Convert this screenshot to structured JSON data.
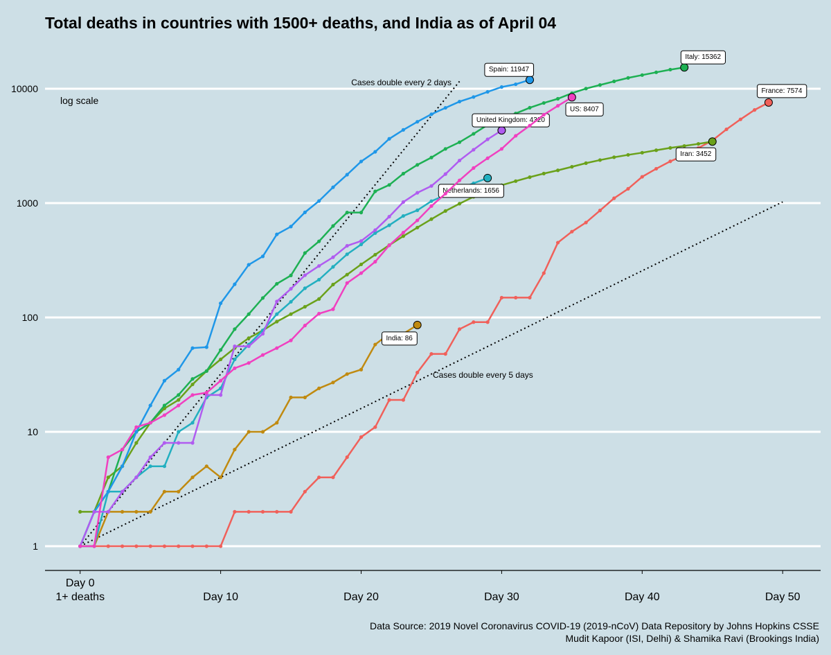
{
  "chart_data": {
    "type": "line",
    "title": "Total deaths in countries with 1500+ deaths, and India as of April 04",
    "log_note": "log scale",
    "source": [
      "Data Source: 2019 Novel Coronavirus COVID-19 (2019-nCoV) Data Repository by Johns Hopkins CSSE",
      "Mudit Kapoor (ISI, Delhi) & Shamika Ravi (Brookings India)"
    ],
    "log_scale": true,
    "grid": true,
    "xlim": [
      -2.5,
      52.7
    ],
    "ylim": [
      0.614,
      25820
    ],
    "xticks": [
      {
        "value": 0,
        "label": "Day 0\n1+ deaths"
      },
      {
        "value": 10,
        "label": "Day 10"
      },
      {
        "value": 20,
        "label": "Day 20"
      },
      {
        "value": 30,
        "label": "Day 30"
      },
      {
        "value": 40,
        "label": "Day 40"
      },
      {
        "value": 50,
        "label": "Day 50"
      }
    ],
    "yticks": [
      1,
      10,
      100,
      1000,
      10000
    ],
    "x": [
      0,
      1,
      2,
      3,
      4,
      5,
      6,
      7,
      8,
      9,
      10,
      11,
      12,
      13,
      14,
      15,
      16,
      17,
      18,
      19,
      20,
      21,
      22,
      23,
      24,
      25,
      26,
      27,
      28,
      29,
      30,
      31,
      32,
      33,
      34,
      35,
      36,
      37,
      38,
      39,
      40,
      41,
      42,
      43,
      44,
      45,
      46,
      47,
      48,
      49
    ],
    "reference_lines": [
      {
        "label": "Cases double every 2 days",
        "doubling_days": 2,
        "x": [
          0,
          27
        ]
      },
      {
        "label": "Cases double every 5 days",
        "doubling_days": 5,
        "x": [
          0,
          50
        ]
      }
    ],
    "series": [
      {
        "name": "France",
        "color": "#f0605a",
        "end_label": "France: 7574",
        "values": [
          1,
          1,
          1,
          1,
          1,
          1,
          1,
          1,
          1,
          1,
          1,
          2,
          2,
          2,
          2,
          2,
          3,
          4,
          4,
          6,
          9,
          11,
          19,
          19,
          33,
          48,
          48,
          79,
          91,
          91,
          149,
          149,
          149,
          244,
          451,
          563,
          676,
          862,
          1102,
          1333,
          1698,
          1997,
          2317,
          2611,
          3030,
          3532,
          4414,
          5398,
          6520,
          7574
        ]
      },
      {
        "name": "India",
        "color": "#c08a10",
        "end_label": "India: 86",
        "values": [
          1,
          1,
          2,
          2,
          2,
          2,
          3,
          3,
          4,
          5,
          4,
          7,
          10,
          10,
          12,
          20,
          20,
          24,
          27,
          32,
          35,
          58,
          72,
          72,
          86,
          null,
          null,
          null,
          null,
          null,
          null,
          null,
          null,
          null,
          null,
          null,
          null,
          null,
          null,
          null,
          null,
          null,
          null,
          null,
          null,
          null,
          null,
          null,
          null,
          null
        ]
      },
      {
        "name": "Iran",
        "color": "#6aa11a",
        "end_label": "Iran: 3452",
        "values": [
          2,
          2,
          4,
          5,
          8,
          12,
          16,
          19,
          26,
          34,
          43,
          54,
          66,
          77,
          92,
          107,
          124,
          145,
          194,
          237,
          291,
          354,
          429,
          514,
          611,
          724,
          853,
          988,
          1135,
          1284,
          1433,
          1556,
          1685,
          1812,
          1934,
          2077,
          2234,
          2378,
          2517,
          2640,
          2757,
          2898,
          3036,
          3160,
          3294,
          3452,
          null,
          null,
          null,
          null
        ]
      },
      {
        "name": "Italy",
        "color": "#1db053",
        "end_label": "Italy: 15362",
        "values": [
          1,
          2,
          3,
          7,
          10,
          12,
          17,
          21,
          29,
          34,
          52,
          79,
          107,
          148,
          197,
          233,
          366,
          463,
          631,
          827,
          827,
          1266,
          1441,
          1809,
          2158,
          2503,
          2978,
          3405,
          4032,
          4825,
          5476,
          6077,
          6820,
          7503,
          8165,
          9134,
          10023,
          10779,
          11591,
          12428,
          13155,
          13915,
          14681,
          15362,
          null,
          null,
          null,
          null,
          null,
          null
        ]
      },
      {
        "name": "Netherlands",
        "color": "#22afc0",
        "end_label": "Netherlands: 1656",
        "values": [
          1,
          1,
          3,
          3,
          4,
          5,
          5,
          10,
          12,
          20,
          24,
          43,
          58,
          77,
          107,
          137,
          180,
          214,
          277,
          357,
          435,
          547,
          640,
          772,
          865,
          1040,
          1175,
          1341,
          1490,
          1656,
          null,
          null,
          null,
          null,
          null,
          null,
          null,
          null,
          null,
          null,
          null,
          null,
          null,
          null,
          null,
          null,
          null,
          null,
          null,
          null
        ]
      },
      {
        "name": "Spain",
        "color": "#1f97e8",
        "end_label": "Spain: 11947",
        "values": [
          1,
          2,
          3,
          5,
          10,
          17,
          28,
          35,
          54,
          55,
          133,
          195,
          289,
          342,
          533,
          623,
          830,
          1043,
          1375,
          1772,
          2311,
          2808,
          3647,
          4365,
          5138,
          5982,
          6803,
          7716,
          8464,
          9387,
          10348,
          10935,
          11947,
          null,
          null,
          null,
          null,
          null,
          null,
          null,
          null,
          null,
          null,
          null,
          null,
          null,
          null,
          null,
          null,
          null
        ]
      },
      {
        "name": "United Kingdom",
        "color": "#b05cf0",
        "end_label": "United Kingdom: 4320",
        "values": [
          1,
          2,
          2,
          3,
          4,
          6,
          8,
          8,
          8,
          21,
          21,
          56,
          56,
          72,
          138,
          178,
          234,
          282,
          336,
          423,
          466,
          580,
          761,
          1021,
          1231,
          1411,
          1793,
          2357,
          2926,
          3611,
          4320,
          null,
          null,
          null,
          null,
          null,
          null,
          null,
          null,
          null,
          null,
          null,
          null,
          null,
          null,
          null,
          null,
          null,
          null,
          null
        ]
      },
      {
        "name": "US",
        "color": "#f040c0",
        "end_label": "US: 8407",
        "values": [
          1,
          1,
          6,
          7,
          11,
          12,
          14,
          17,
          21,
          22,
          28,
          36,
          40,
          47,
          54,
          63,
          85,
          108,
          118,
          200,
          244,
          307,
          427,
          552,
          706,
          942,
          1209,
          1581,
          2026,
          2467,
          2978,
          3873,
          4757,
          5926,
          7087,
          8407,
          null,
          null,
          null,
          null,
          null,
          null,
          null,
          null,
          null,
          null,
          null,
          null,
          null,
          null
        ]
      }
    ]
  }
}
